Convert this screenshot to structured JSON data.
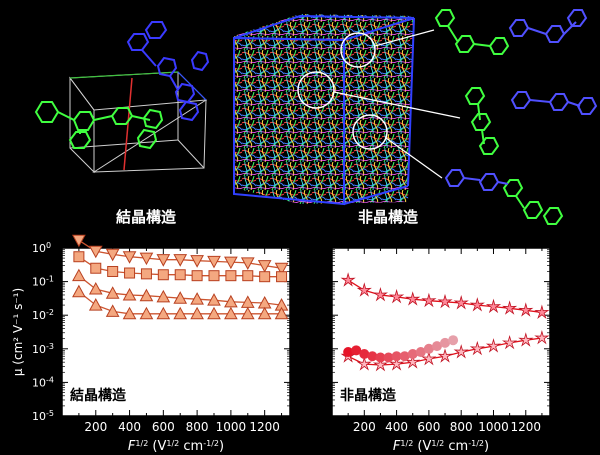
{
  "top": {
    "crystal_label": "結晶構造",
    "amorphous_label": "非晶構造"
  },
  "chart_data": [
    {
      "type": "scatter",
      "panel_label": "結晶構造",
      "xlabel": "F",
      "xlabel_sup": "1/2",
      "xlabel_units": " (V",
      "xlabel_units_sup": "1/2",
      "xlabel_units_tail": " cm",
      "xlabel_units_tail_sup": "-1/2",
      "xlabel_units_close": ")",
      "ylabel": "μ (cm² V⁻¹ s⁻¹)",
      "y_scale": "log",
      "xlim": [
        0,
        1350
      ],
      "ylim": [
        1e-05,
        1
      ],
      "x_ticks": [
        200,
        400,
        600,
        800,
        1000,
        1200
      ],
      "y_tick_base": "10",
      "y_tick_exps": [
        "0",
        "-1",
        "-2",
        "-3",
        "-4",
        "-5"
      ],
      "color_line": "#cc5530",
      "series": [
        {
          "marker": "triangle-down",
          "x": [
            100,
            200,
            300,
            400,
            500,
            600,
            700,
            800,
            900,
            1000,
            1100,
            1200,
            1300
          ],
          "y": [
            1.7,
            0.8,
            0.65,
            0.55,
            0.5,
            0.45,
            0.45,
            0.42,
            0.4,
            0.38,
            0.36,
            0.3,
            0.25
          ]
        },
        {
          "marker": "square",
          "x": [
            100,
            200,
            300,
            400,
            500,
            600,
            700,
            800,
            900,
            1000,
            1100,
            1200,
            1300
          ],
          "y": [
            0.55,
            0.25,
            0.2,
            0.18,
            0.17,
            0.16,
            0.16,
            0.15,
            0.15,
            0.15,
            0.15,
            0.14,
            0.14
          ]
        },
        {
          "marker": "triangle-up",
          "x": [
            100,
            200,
            300,
            400,
            500,
            600,
            700,
            800,
            900,
            1000,
            1100,
            1200,
            1300
          ],
          "y": [
            0.15,
            0.06,
            0.045,
            0.04,
            0.038,
            0.035,
            0.032,
            0.03,
            0.028,
            0.025,
            0.024,
            0.023,
            0.02
          ]
        },
        {
          "marker": "triangle-up",
          "x": [
            100,
            200,
            300,
            400,
            500,
            600,
            700,
            800,
            900,
            1000,
            1100,
            1200,
            1300
          ],
          "y": [
            0.05,
            0.02,
            0.013,
            0.011,
            0.011,
            0.011,
            0.011,
            0.011,
            0.011,
            0.011,
            0.011,
            0.011,
            0.011
          ]
        }
      ]
    },
    {
      "type": "scatter",
      "panel_label": "非晶構造",
      "xlabel": "F",
      "xlabel_sup": "1/2",
      "xlabel_units": " (V",
      "xlabel_units_sup": "1/2",
      "xlabel_units_tail": " cm",
      "xlabel_units_tail_sup": "-1/2",
      "xlabel_units_close": ")",
      "y_scale": "log",
      "xlim": [
        0,
        1350
      ],
      "ylim": [
        1e-05,
        1
      ],
      "x_ticks": [
        200,
        400,
        600,
        800,
        1000,
        1200
      ],
      "color_line": "#e0101a",
      "series": [
        {
          "marker": "star",
          "x": [
            100,
            200,
            300,
            400,
            500,
            600,
            700,
            800,
            900,
            1000,
            1100,
            1200,
            1300
          ],
          "y": [
            0.11,
            0.055,
            0.04,
            0.035,
            0.03,
            0.027,
            0.025,
            0.023,
            0.02,
            0.018,
            0.016,
            0.014,
            0.012
          ]
        },
        {
          "marker": "star",
          "x": [
            100,
            200,
            300,
            400,
            500,
            600,
            700,
            800,
            900,
            1000,
            1100,
            1200,
            1300
          ],
          "y": [
            0.0006,
            0.00035,
            0.00033,
            0.00035,
            0.0004,
            0.0005,
            0.0006,
            0.0008,
            0.001,
            0.0012,
            0.0015,
            0.0018,
            0.0021
          ]
        },
        {
          "marker": "circle",
          "x": [
            100,
            150,
            200,
            250,
            300,
            350,
            400,
            450,
            500,
            550,
            600,
            650,
            700,
            750
          ],
          "y": [
            0.0008,
            0.0009,
            0.0007,
            0.0006,
            0.00055,
            0.00055,
            0.0006,
            0.0006,
            0.0007,
            0.0008,
            0.001,
            0.0012,
            0.0015,
            0.0018
          ]
        }
      ]
    }
  ]
}
